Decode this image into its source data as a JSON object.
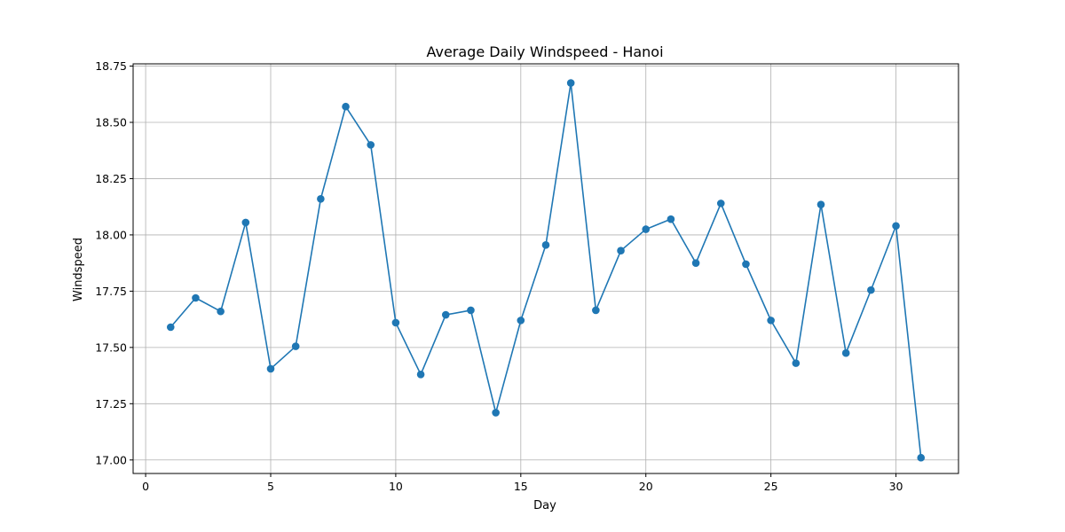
{
  "chart_data": {
    "type": "line",
    "title": "Average Daily Windspeed - Hanoi",
    "xlabel": "Day",
    "ylabel": "Windspeed",
    "xlim": [
      -0.5,
      32.5
    ],
    "ylim": [
      16.94,
      18.76
    ],
    "xticks": [
      0,
      5,
      10,
      15,
      20,
      25,
      30
    ],
    "xtick_labels": [
      "0",
      "5",
      "10",
      "15",
      "20",
      "25",
      "30"
    ],
    "yticks": [
      17.0,
      17.25,
      17.5,
      17.75,
      18.0,
      18.25,
      18.5,
      18.75
    ],
    "ytick_labels": [
      "17.00",
      "17.25",
      "17.50",
      "17.75",
      "18.00",
      "18.25",
      "18.50",
      "18.75"
    ],
    "grid": true,
    "marker": "circle",
    "color": "#1f77b4",
    "x": [
      1,
      2,
      3,
      4,
      5,
      6,
      7,
      8,
      9,
      10,
      11,
      12,
      13,
      14,
      15,
      16,
      17,
      18,
      19,
      20,
      21,
      22,
      23,
      24,
      25,
      26,
      27,
      28,
      29,
      30,
      31
    ],
    "y": [
      17.59,
      17.72,
      17.66,
      18.055,
      17.405,
      17.505,
      18.16,
      18.57,
      18.4,
      17.61,
      17.38,
      17.645,
      17.665,
      17.21,
      17.62,
      17.955,
      18.675,
      17.665,
      17.93,
      18.025,
      18.07,
      17.875,
      18.14,
      17.87,
      17.62,
      17.43,
      18.135,
      17.475,
      17.755,
      18.04,
      17.01
    ]
  }
}
